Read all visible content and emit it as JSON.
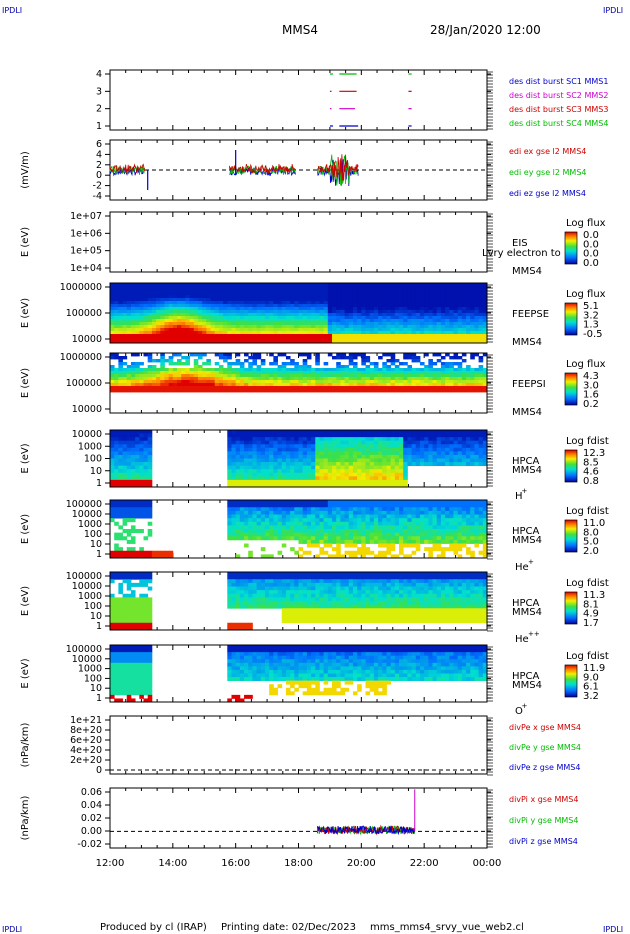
{
  "header": {
    "corner_logo": "IPDLI",
    "spacecraft": "MMS4",
    "datetime": "28/Jan/2020 12:00"
  },
  "footer": {
    "produced_by": "Produced by cl (IRAP)",
    "printing_date": "Printing date: 02/Dec/2023",
    "filename": "mms_mms4_srvy_vue_web2.cl"
  },
  "time_axis": {
    "start_hour": 12,
    "end_hour": 24,
    "tick_labels": [
      "12:00",
      "14:00",
      "16:00",
      "18:00",
      "20:00",
      "22:00",
      "00:00"
    ]
  },
  "colors": {
    "mms1": "#0000cc",
    "mms2": "#cc00cc",
    "mms3": "#cc0000",
    "mms4": "#00bb00"
  },
  "chart_data": [
    {
      "panel": "burst",
      "type": "line",
      "ylabel": "",
      "ylim": [
        0.5,
        4.5
      ],
      "ticks": [
        "4",
        "3",
        "2",
        "1"
      ],
      "legend": [
        "des dist burst SC1 MMS1",
        "des dist burst SC2 MMS2",
        "des dist burst SC3 MMS3",
        "des dist burst SC4 MMS4"
      ],
      "series": [
        {
          "name": "des dist burst SC1 MMS1",
          "level": 1,
          "segments": [
            [
              19.0,
              19.1
            ],
            [
              19.3,
              19.9
            ],
            [
              21.5,
              21.6
            ]
          ]
        },
        {
          "name": "des dist burst SC2 MMS2",
          "level": 2,
          "segments": [
            [
              19.0,
              19.05
            ],
            [
              19.3,
              19.8
            ],
            [
              21.5,
              21.6
            ]
          ]
        },
        {
          "name": "des dist burst SC3 MMS3",
          "level": 3,
          "segments": [
            [
              19.0,
              19.05
            ],
            [
              19.3,
              19.85
            ],
            [
              21.5,
              21.6
            ]
          ]
        },
        {
          "name": "des dist burst SC4 MMS4",
          "level": 4,
          "segments": [
            [
              19.0,
              19.1
            ],
            [
              19.3,
              19.85
            ],
            [
              21.5,
              21.6
            ]
          ]
        }
      ]
    },
    {
      "panel": "efield",
      "type": "line",
      "ylabel": "(mV/m)",
      "ylim": [
        -6,
        6
      ],
      "ticks": [
        "6",
        "4",
        "2",
        "0",
        "-2",
        "-4"
      ],
      "legend": [
        "edi ex gse l2 MMS4",
        "edi ey gse l2 MMS4",
        "edi ez gse l2 MMS4"
      ]
    },
    {
      "panel": "eis",
      "type": "heatmap",
      "ylabel": "E (eV)",
      "ticks": [
        "1e+07",
        "1e+06",
        "1e+05",
        "1e+04"
      ],
      "instrument": "EIS",
      "spacecraft": "MMS4",
      "overlay_label": "Lvry electron to",
      "colorbar_title": "Log flux",
      "colorbar_values": [
        "0.0",
        "0.0",
        "0.0",
        "0.0"
      ]
    },
    {
      "panel": "feepse",
      "type": "heatmap",
      "ylabel": "E (eV)",
      "ticks": [
        "1000000",
        "100000",
        "10000"
      ],
      "instrument": "FEEPSE",
      "spacecraft": "MMS4",
      "colorbar_title": "Log flux",
      "colorbar_values": [
        "5.1",
        "3.2",
        "1.3",
        "-0.5"
      ]
    },
    {
      "panel": "feepsi",
      "type": "heatmap",
      "ylabel": "E (eV)",
      "ticks": [
        "1000000",
        "100000",
        "10000"
      ],
      "instrument": "FEEPSI",
      "spacecraft": "MMS4",
      "colorbar_title": "Log flux",
      "colorbar_values": [
        "4.3",
        "3.0",
        "1.6",
        "0.2"
      ]
    },
    {
      "panel": "hpca_h",
      "type": "heatmap",
      "ylabel": "E (eV)",
      "ticks": [
        "10000",
        "1000",
        "100",
        "10",
        "1"
      ],
      "instrument": "HPCA",
      "spacecraft": "MMS4",
      "species": "H",
      "species_sup": "+",
      "colorbar_title": "Log fdist",
      "colorbar_values": [
        "12.3",
        "8.5",
        "4.6",
        "0.8"
      ]
    },
    {
      "panel": "hpca_he",
      "type": "heatmap",
      "ylabel": "E (eV)",
      "ticks": [
        "100000",
        "10000",
        "1000",
        "100",
        "10",
        "1"
      ],
      "instrument": "HPCA",
      "spacecraft": "MMS4",
      "species": "He",
      "species_sup": "+",
      "colorbar_title": "Log fdist",
      "colorbar_values": [
        "11.0",
        "8.0",
        "5.0",
        "2.0"
      ]
    },
    {
      "panel": "hpca_he2",
      "type": "heatmap",
      "ylabel": "E (eV)",
      "ticks": [
        "100000",
        "10000",
        "1000",
        "100",
        "10",
        "1"
      ],
      "instrument": "HPCA",
      "spacecraft": "MMS4",
      "species": "He",
      "species_sup": "++",
      "colorbar_title": "Log fdist",
      "colorbar_values": [
        "11.3",
        "8.1",
        "4.9",
        "1.7"
      ]
    },
    {
      "panel": "hpca_o",
      "type": "heatmap",
      "ylabel": "E (eV)",
      "ticks": [
        "100000",
        "10000",
        "1000",
        "100",
        "10",
        "1"
      ],
      "instrument": "HPCA",
      "spacecraft": "MMS4",
      "species": "O",
      "species_sup": "+",
      "colorbar_title": "Log fdist",
      "colorbar_values": [
        "11.9",
        "9.0",
        "6.1",
        "3.2"
      ]
    },
    {
      "panel": "divpe",
      "type": "line",
      "ylabel": "(nPa/km)",
      "ticks": [
        "1e+21",
        "8e+20",
        "6e+20",
        "4e+20",
        "2e+20",
        "0"
      ],
      "legend": [
        "divPe x gse MMS4",
        "divPe y gse MMS4",
        "divPe z gse MMS4"
      ]
    },
    {
      "panel": "divpi",
      "type": "line",
      "ylabel": "(nPa/km)",
      "ylim": [
        -0.025,
        0.065
      ],
      "ticks": [
        "0.06",
        "0.04",
        "0.02",
        "0.00",
        "-0.02"
      ],
      "legend": [
        "divPi x gse MMS4",
        "divPi y gse MMS4",
        "divPi z gse MMS4"
      ]
    }
  ]
}
